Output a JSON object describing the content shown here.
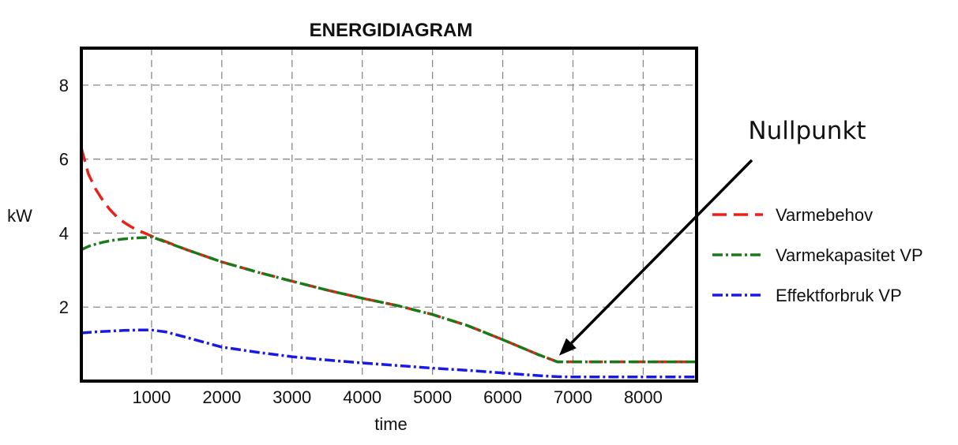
{
  "chart_data": {
    "type": "line",
    "title": "ENERGIDIAGRAM",
    "xlabel": "time",
    "ylabel": "kW",
    "xlim": [
      0,
      8760
    ],
    "ylim": [
      0,
      9
    ],
    "xticks": [
      1000,
      2000,
      3000,
      4000,
      5000,
      6000,
      7000,
      8000
    ],
    "yticks": [
      2,
      4,
      6,
      8
    ],
    "grid": true,
    "legend_position": "right",
    "series": [
      {
        "name": "Varmebehov",
        "color": "#e8211b",
        "style": "dashed",
        "x": [
          0,
          100,
          200,
          300,
          400,
          500,
          600,
          700,
          800,
          900,
          1000,
          1500,
          2000,
          2500,
          3000,
          3500,
          4000,
          4500,
          5000,
          5500,
          6000,
          6500,
          6780,
          7000,
          8000,
          8760
        ],
        "y": [
          6.3,
          5.6,
          5.2,
          4.9,
          4.65,
          4.45,
          4.3,
          4.18,
          4.08,
          4.0,
          3.92,
          3.55,
          3.22,
          2.95,
          2.7,
          2.46,
          2.24,
          2.04,
          1.8,
          1.5,
          1.12,
          0.72,
          0.52,
          0.52,
          0.52,
          0.52
        ]
      },
      {
        "name": "Varmekapasitet VP",
        "color": "#1a7a1a",
        "style": "dashdot",
        "x": [
          0,
          100,
          200,
          300,
          400,
          500,
          600,
          700,
          800,
          900,
          1000,
          1500,
          2000,
          2500,
          3000,
          3500,
          4000,
          4500,
          5000,
          5500,
          6000,
          6500,
          6780,
          7000,
          8000,
          8760
        ],
        "y": [
          3.55,
          3.64,
          3.7,
          3.75,
          3.79,
          3.82,
          3.84,
          3.86,
          3.87,
          3.88,
          3.9,
          3.55,
          3.22,
          2.95,
          2.7,
          2.46,
          2.24,
          2.04,
          1.8,
          1.5,
          1.12,
          0.72,
          0.52,
          0.52,
          0.52,
          0.52
        ]
      },
      {
        "name": "Effektforbruk VP",
        "color": "#1a1ae0",
        "style": "dashdot",
        "x": [
          0,
          200,
          400,
          600,
          800,
          1000,
          1200,
          1500,
          2000,
          2500,
          3000,
          3500,
          4000,
          4500,
          5000,
          5500,
          6000,
          6500,
          6780,
          7000,
          8000,
          8760
        ],
        "y": [
          1.3,
          1.33,
          1.35,
          1.37,
          1.38,
          1.38,
          1.33,
          1.18,
          0.92,
          0.78,
          0.66,
          0.57,
          0.49,
          0.42,
          0.35,
          0.29,
          0.22,
          0.15,
          0.12,
          0.11,
          0.11,
          0.11
        ]
      }
    ],
    "annotations": [
      {
        "text": "Nullpunkt",
        "point": {
          "x": 6780,
          "y": 0.52
        }
      }
    ]
  }
}
